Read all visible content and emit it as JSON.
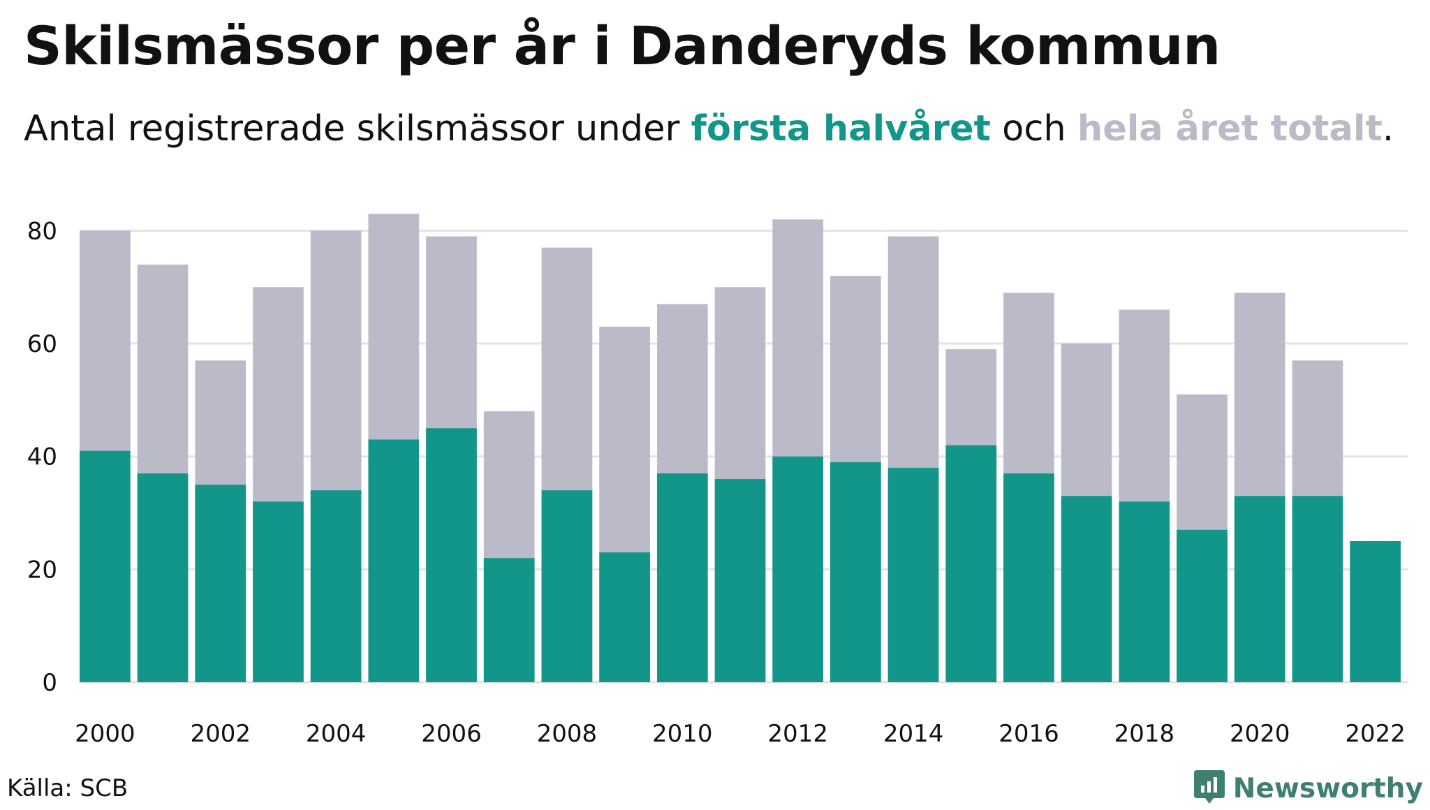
{
  "title": "Skilsmässor per år i Danderyds kommun",
  "subtitle": {
    "prefix": "Antal registrerade skilsmässor under ",
    "first_half": "första halvåret",
    "middle": " och ",
    "full_year": "hela året totalt",
    "suffix": "."
  },
  "source": "Källa: SCB",
  "brand": {
    "name": "Newsworthy",
    "icon": "newsworthy-logo-icon"
  },
  "colors": {
    "first_half": "#13968a",
    "full_year": "#bbbac8",
    "grid": "#e3e3e3",
    "brand": "#3f7f6e"
  },
  "chart_data": {
    "type": "bar",
    "stacking": "overlay",
    "categories": [
      2000,
      2001,
      2002,
      2003,
      2004,
      2005,
      2006,
      2007,
      2008,
      2009,
      2010,
      2011,
      2012,
      2013,
      2014,
      2015,
      2016,
      2017,
      2018,
      2019,
      2020,
      2021,
      2022
    ],
    "series": [
      {
        "name": "hela året totalt",
        "color": "#bbbac8",
        "values": [
          80,
          74,
          57,
          70,
          80,
          83,
          79,
          48,
          77,
          63,
          67,
          70,
          82,
          72,
          79,
          59,
          69,
          60,
          66,
          51,
          69,
          57,
          null
        ]
      },
      {
        "name": "första halvåret",
        "color": "#13968a",
        "values": [
          41,
          37,
          35,
          32,
          34,
          43,
          45,
          22,
          34,
          23,
          37,
          36,
          40,
          39,
          38,
          42,
          37,
          33,
          32,
          27,
          33,
          33,
          25
        ]
      }
    ],
    "x_tick_labels": [
      "2000",
      "2002",
      "2004",
      "2006",
      "2008",
      "2010",
      "2012",
      "2014",
      "2016",
      "2018",
      "2020",
      "2022"
    ],
    "y_ticks": [
      0,
      20,
      40,
      60,
      80
    ],
    "ylim": [
      0,
      85
    ],
    "grid": "horizontal",
    "xlabel": "",
    "ylabel": ""
  }
}
